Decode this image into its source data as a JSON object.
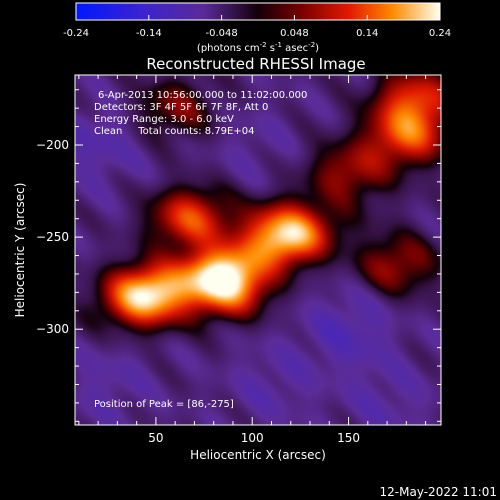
{
  "chart_data": {
    "type": "heatmap",
    "title": "Reconstructed RHESSI Image",
    "xlabel": "Heliocentric X (arcsec)",
    "ylabel": "Heliocentric Y (arcsec)",
    "xlim": [
      8,
      198
    ],
    "ylim": [
      -352,
      -162
    ],
    "x_ticks": [
      50,
      100,
      150
    ],
    "y_ticks": [
      -200,
      -250,
      -300
    ],
    "colorbar": {
      "range": [
        -0.24,
        0.24
      ],
      "ticks": [
        "-0.24",
        "-0.14",
        "-0.048",
        "0.048",
        "0.14",
        "0.24"
      ],
      "units_prefix": "(photons cm",
      "units_exp1": "-2",
      "units_mid": " s",
      "units_exp2": "-1",
      "units_mid2": " asec",
      "units_exp3": "-2",
      "units_suffix": ")"
    },
    "annotations": {
      "time": "6-Apr-2013 10:56:00.000 to 11:02:00.000",
      "detectors": "Detectors: 3F 4F 5F 6F 7F 8F, Att 0",
      "energy": "Energy Range: 3.0 - 6.0 keV",
      "clean": "Clean     Total counts: 8.79E+04",
      "peak": "Position of Peak = [86,-275]"
    },
    "sources": [
      {
        "x": 86,
        "y": -275,
        "peak": 0.24
      },
      {
        "x": 45,
        "y": -282,
        "peak": 0.2
      },
      {
        "x": 118,
        "y": -248,
        "peak": 0.19
      },
      {
        "x": 68,
        "y": -240,
        "peak": 0.12
      },
      {
        "x": 180,
        "y": -195,
        "peak": 0.12
      },
      {
        "x": 185,
        "y": -175,
        "peak": 0.1
      },
      {
        "x": 150,
        "y": -215,
        "peak": 0.06
      },
      {
        "x": 175,
        "y": -265,
        "peak": 0.06
      },
      {
        "x": 60,
        "y": -180,
        "peak": 0.04
      }
    ],
    "negative_regions": [
      {
        "x": 20,
        "y": -200,
        "peak": -0.09
      },
      {
        "x": 150,
        "y": -300,
        "peak": -0.1
      },
      {
        "x": 110,
        "y": -330,
        "peak": -0.08
      },
      {
        "x": 100,
        "y": -200,
        "peak": -0.07
      },
      {
        "x": 25,
        "y": -330,
        "peak": -0.08
      },
      {
        "x": 170,
        "y": -340,
        "peak": -0.08
      }
    ]
  },
  "footer": {
    "timestamp": "12-May-2022 11:01"
  }
}
